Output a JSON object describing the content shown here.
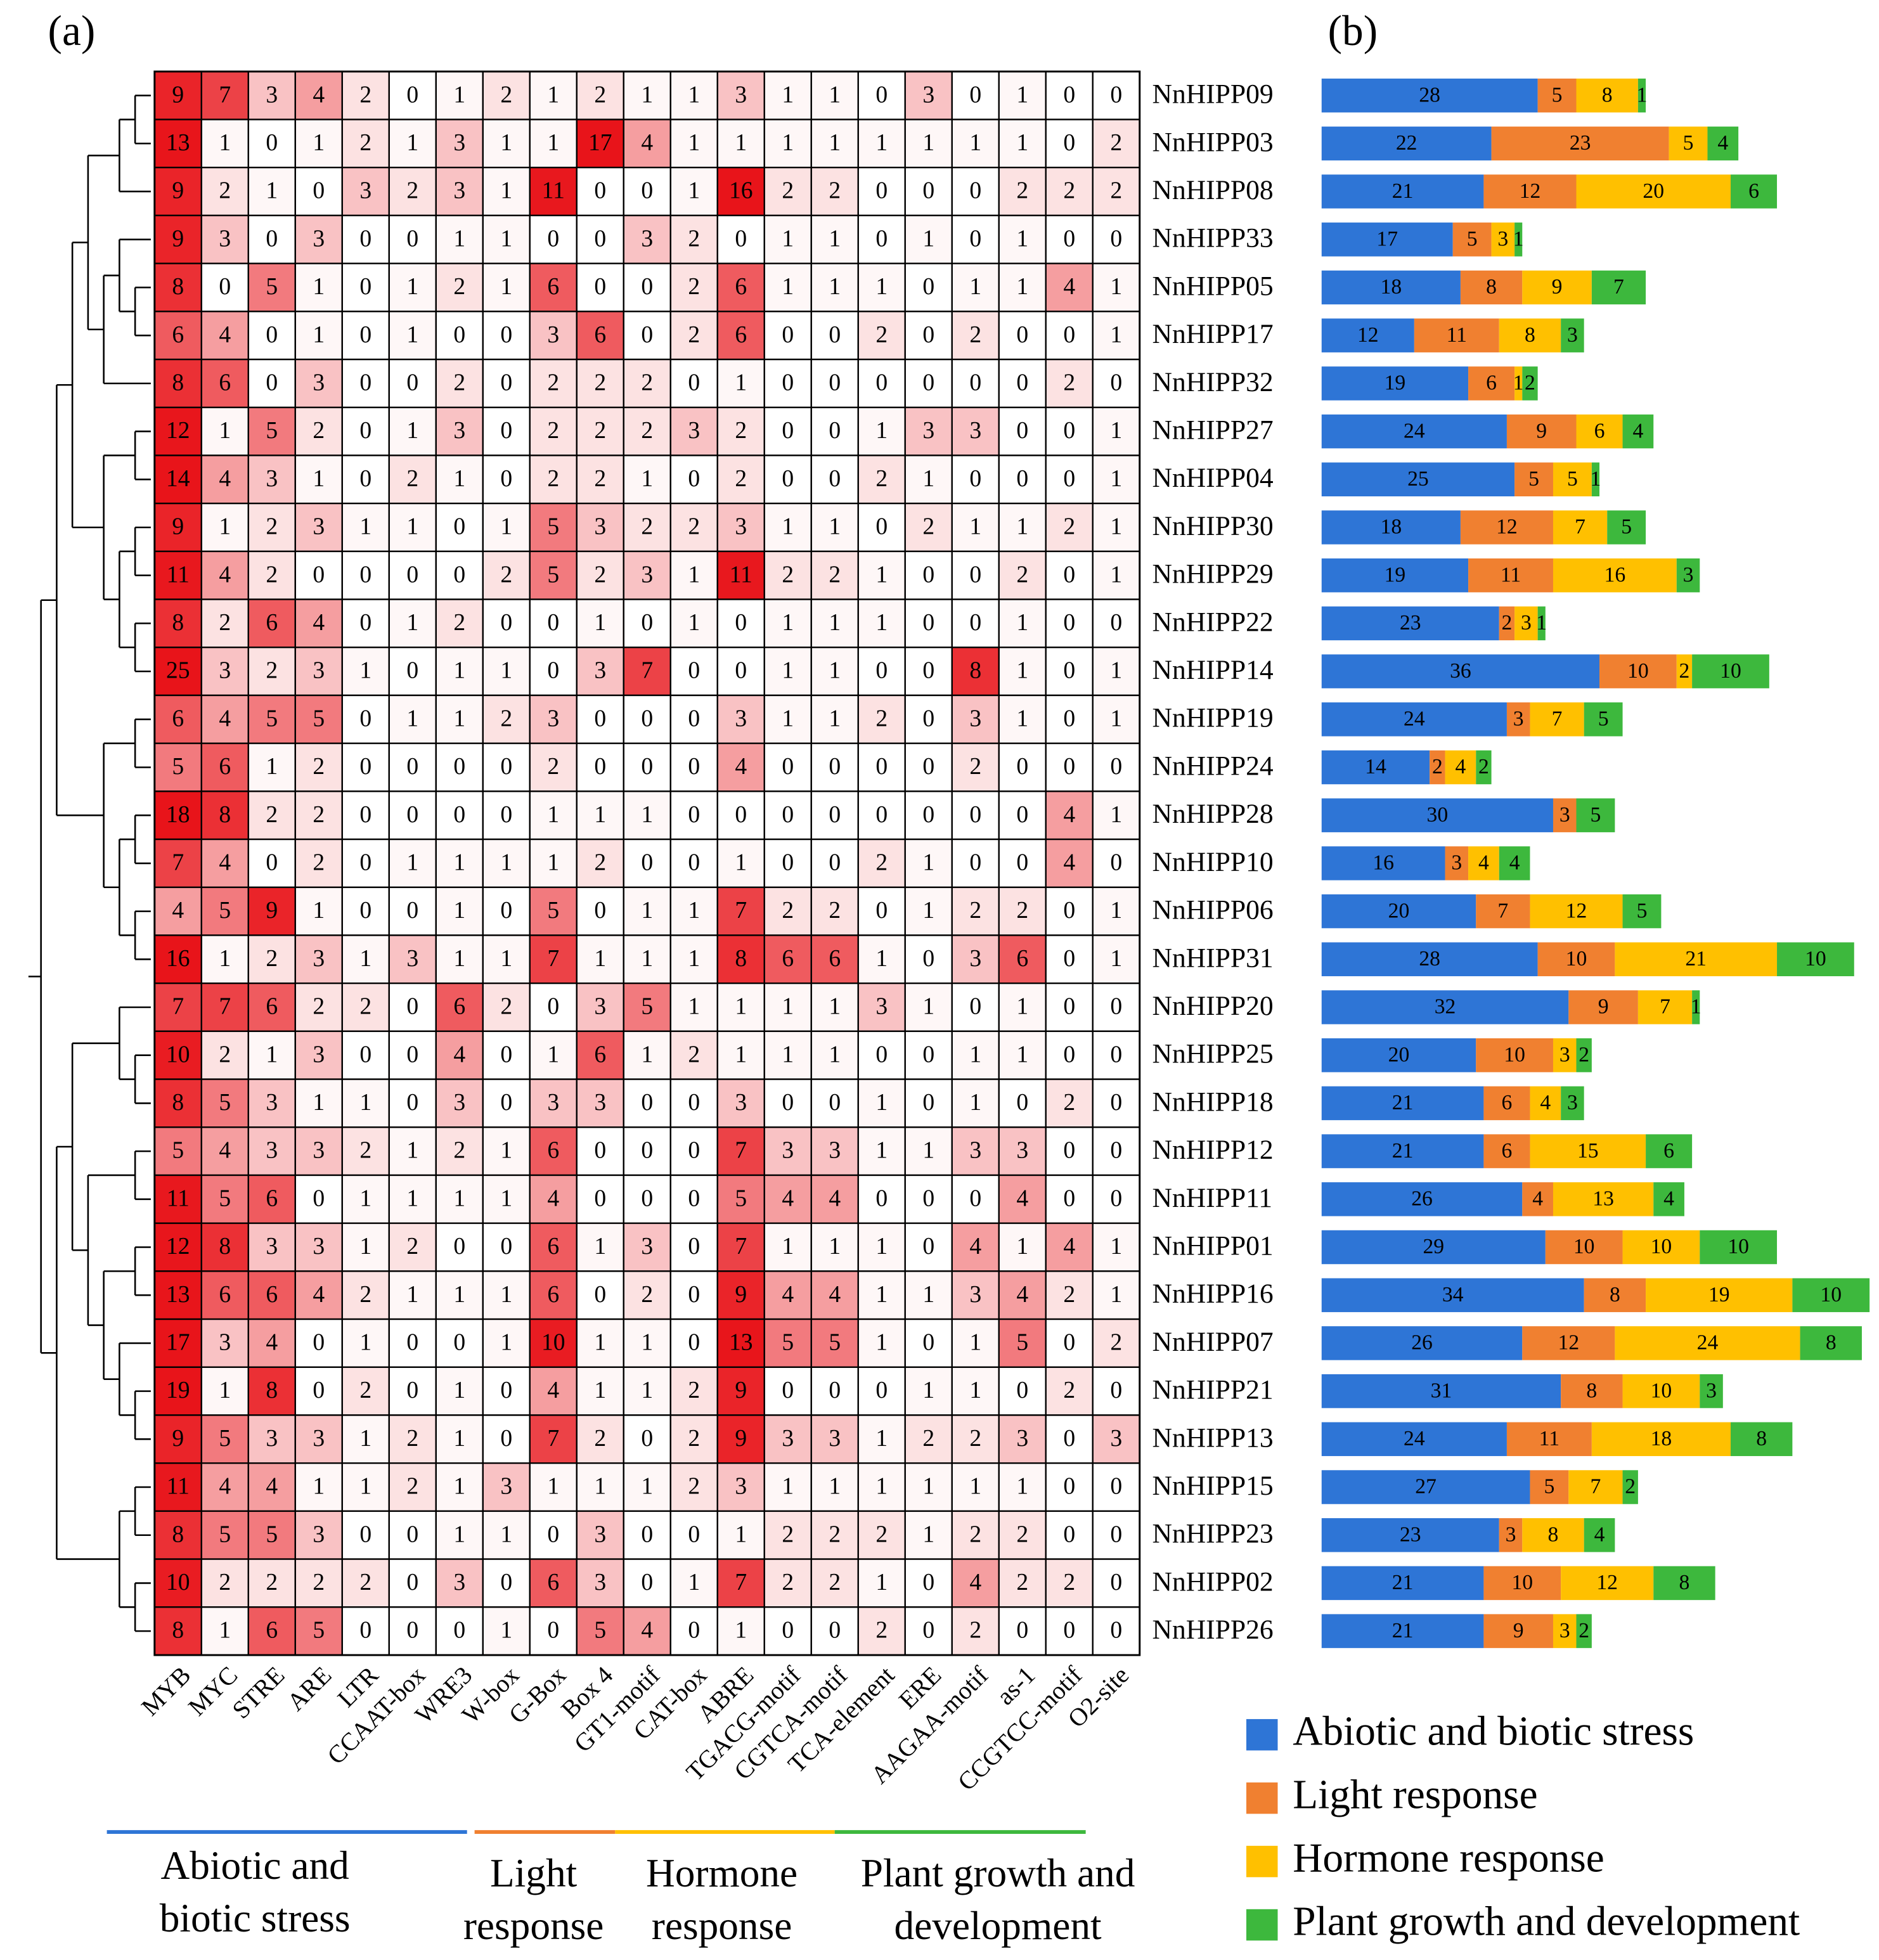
{
  "chart_data": [
    {
      "type": "heatmap",
      "panel_label": "(a)",
      "columns": [
        "MYB",
        "MYC",
        "STRE",
        "ARE",
        "LTR",
        "CCAAT-box",
        "WRE3",
        "W-box",
        "G-Box",
        "Box 4",
        "GT1-motif",
        "CAT-box",
        "ABRE",
        "TGACG-motif",
        "CGTCA-motif",
        "TCA-element",
        "ERE",
        "AAGAA-motif",
        "as-1",
        "CCGTCC-motif",
        "O2-site"
      ],
      "rows": [
        "NnHIPP09",
        "NnHIPP03",
        "NnHIPP08",
        "NnHIPP33",
        "NnHIPP05",
        "NnHIPP17",
        "NnHIPP32",
        "NnHIPP27",
        "NnHIPP04",
        "NnHIPP30",
        "NnHIPP29",
        "NnHIPP22",
        "NnHIPP14",
        "NnHIPP19",
        "NnHIPP24",
        "NnHIPP28",
        "NnHIPP10",
        "NnHIPP06",
        "NnHIPP31",
        "NnHIPP20",
        "NnHIPP25",
        "NnHIPP18",
        "NnHIPP12",
        "NnHIPP11",
        "NnHIPP01",
        "NnHIPP16",
        "NnHIPP07",
        "NnHIPP21",
        "NnHIPP13",
        "NnHIPP15",
        "NnHIPP23",
        "NnHIPP02",
        "NnHIPP26"
      ],
      "values": [
        [
          9,
          7,
          3,
          4,
          2,
          0,
          1,
          2,
          1,
          2,
          1,
          1,
          3,
          1,
          1,
          0,
          3,
          0,
          1,
          0,
          0
        ],
        [
          13,
          1,
          0,
          1,
          2,
          1,
          3,
          1,
          1,
          17,
          4,
          1,
          1,
          1,
          1,
          1,
          1,
          1,
          1,
          0,
          2
        ],
        [
          9,
          2,
          1,
          0,
          3,
          2,
          3,
          1,
          11,
          0,
          0,
          1,
          16,
          2,
          2,
          0,
          0,
          0,
          2,
          2,
          2
        ],
        [
          9,
          3,
          0,
          3,
          0,
          0,
          1,
          1,
          0,
          0,
          3,
          2,
          0,
          1,
          1,
          0,
          1,
          0,
          1,
          0,
          0
        ],
        [
          8,
          0,
          5,
          1,
          0,
          1,
          2,
          1,
          6,
          0,
          0,
          2,
          6,
          1,
          1,
          1,
          0,
          1,
          1,
          4,
          1
        ],
        [
          6,
          4,
          0,
          1,
          0,
          1,
          0,
          0,
          3,
          6,
          0,
          2,
          6,
          0,
          0,
          2,
          0,
          2,
          0,
          0,
          1
        ],
        [
          8,
          6,
          0,
          3,
          0,
          0,
          2,
          0,
          2,
          2,
          2,
          0,
          1,
          0,
          0,
          0,
          0,
          0,
          0,
          2,
          0
        ],
        [
          12,
          1,
          5,
          2,
          0,
          1,
          3,
          0,
          2,
          2,
          2,
          3,
          2,
          0,
          0,
          1,
          3,
          3,
          0,
          0,
          1
        ],
        [
          14,
          4,
          3,
          1,
          0,
          2,
          1,
          0,
          2,
          2,
          1,
          0,
          2,
          0,
          0,
          2,
          1,
          0,
          0,
          0,
          1
        ],
        [
          9,
          1,
          2,
          3,
          1,
          1,
          0,
          1,
          5,
          3,
          2,
          2,
          3,
          1,
          1,
          0,
          2,
          1,
          1,
          2,
          1
        ],
        [
          11,
          4,
          2,
          0,
          0,
          0,
          0,
          2,
          5,
          2,
          3,
          1,
          11,
          2,
          2,
          1,
          0,
          0,
          2,
          0,
          1
        ],
        [
          8,
          2,
          6,
          4,
          0,
          1,
          2,
          0,
          0,
          1,
          0,
          1,
          0,
          1,
          1,
          1,
          0,
          0,
          1,
          0,
          0
        ],
        [
          25,
          3,
          2,
          3,
          1,
          0,
          1,
          1,
          0,
          3,
          7,
          0,
          0,
          1,
          1,
          0,
          0,
          8,
          1,
          0,
          1
        ],
        [
          6,
          4,
          5,
          5,
          0,
          1,
          1,
          2,
          3,
          0,
          0,
          0,
          3,
          1,
          1,
          2,
          0,
          3,
          1,
          0,
          1
        ],
        [
          5,
          6,
          1,
          2,
          0,
          0,
          0,
          0,
          2,
          0,
          0,
          0,
          4,
          0,
          0,
          0,
          0,
          2,
          0,
          0,
          0
        ],
        [
          18,
          8,
          2,
          2,
          0,
          0,
          0,
          0,
          1,
          1,
          1,
          0,
          0,
          0,
          0,
          0,
          0,
          0,
          0,
          4,
          1
        ],
        [
          7,
          4,
          0,
          2,
          0,
          1,
          1,
          1,
          1,
          2,
          0,
          0,
          1,
          0,
          0,
          2,
          1,
          0,
          0,
          4,
          0
        ],
        [
          4,
          5,
          9,
          1,
          0,
          0,
          1,
          0,
          5,
          0,
          1,
          1,
          7,
          2,
          2,
          0,
          1,
          2,
          2,
          0,
          1
        ],
        [
          16,
          1,
          2,
          3,
          1,
          3,
          1,
          1,
          7,
          1,
          1,
          1,
          8,
          6,
          6,
          1,
          0,
          3,
          6,
          0,
          1
        ],
        [
          7,
          7,
          6,
          2,
          2,
          0,
          6,
          2,
          0,
          3,
          5,
          1,
          1,
          1,
          1,
          3,
          1,
          0,
          1,
          0,
          0
        ],
        [
          10,
          2,
          1,
          3,
          0,
          0,
          4,
          0,
          1,
          6,
          1,
          2,
          1,
          1,
          1,
          0,
          0,
          1,
          1,
          0,
          0
        ],
        [
          8,
          5,
          3,
          1,
          1,
          0,
          3,
          0,
          3,
          3,
          0,
          0,
          3,
          0,
          0,
          1,
          0,
          1,
          0,
          2,
          0
        ],
        [
          5,
          4,
          3,
          3,
          2,
          1,
          2,
          1,
          6,
          0,
          0,
          0,
          7,
          3,
          3,
          1,
          1,
          3,
          3,
          0,
          0
        ],
        [
          11,
          5,
          6,
          0,
          1,
          1,
          1,
          1,
          4,
          0,
          0,
          0,
          5,
          4,
          4,
          0,
          0,
          0,
          4,
          0,
          0
        ],
        [
          12,
          8,
          3,
          3,
          1,
          2,
          0,
          0,
          6,
          1,
          3,
          0,
          7,
          1,
          1,
          1,
          0,
          4,
          1,
          4,
          1
        ],
        [
          13,
          6,
          6,
          4,
          2,
          1,
          1,
          1,
          6,
          0,
          2,
          0,
          9,
          4,
          4,
          1,
          1,
          3,
          4,
          2,
          1
        ],
        [
          17,
          3,
          4,
          0,
          1,
          0,
          0,
          1,
          10,
          1,
          1,
          0,
          13,
          5,
          5,
          1,
          0,
          1,
          5,
          0,
          2
        ],
        [
          19,
          1,
          8,
          0,
          2,
          0,
          1,
          0,
          4,
          1,
          1,
          2,
          9,
          0,
          0,
          0,
          1,
          1,
          0,
          2,
          0
        ],
        [
          9,
          5,
          3,
          3,
          1,
          2,
          1,
          0,
          7,
          2,
          0,
          2,
          9,
          3,
          3,
          1,
          2,
          2,
          3,
          0,
          3
        ],
        [
          11,
          4,
          4,
          1,
          1,
          2,
          1,
          3,
          1,
          1,
          1,
          2,
          3,
          1,
          1,
          1,
          1,
          1,
          1,
          0,
          0
        ],
        [
          8,
          5,
          5,
          3,
          0,
          0,
          1,
          1,
          0,
          3,
          0,
          0,
          1,
          2,
          2,
          2,
          1,
          2,
          2,
          0,
          0
        ],
        [
          10,
          2,
          2,
          2,
          2,
          0,
          3,
          0,
          6,
          3,
          0,
          1,
          7,
          2,
          2,
          1,
          0,
          4,
          2,
          2,
          0
        ],
        [
          8,
          1,
          6,
          5,
          0,
          0,
          0,
          1,
          0,
          5,
          4,
          0,
          1,
          0,
          0,
          2,
          0,
          2,
          0,
          0,
          0
        ]
      ],
      "groups": [
        {
          "lines": [
            "Abiotic and",
            "biotic stress"
          ],
          "color": "#2e75d6"
        },
        {
          "lines": [
            "Light",
            "response"
          ],
          "color": "#f08030"
        },
        {
          "lines": [
            "Hormone",
            "response"
          ],
          "color": "#ffc000"
        },
        {
          "lines": [
            "Plant growth and",
            "development"
          ],
          "color": "#3db83d"
        }
      ]
    },
    {
      "type": "bar",
      "orientation": "horizontal",
      "stacked": true,
      "panel_label": "(b)",
      "legend": "bottom-right",
      "series": [
        {
          "name": "Abiotic and biotic stress",
          "color": "#2e75d6",
          "values": [
            28,
            22,
            21,
            17,
            18,
            12,
            19,
            24,
            25,
            18,
            19,
            23,
            36,
            24,
            14,
            30,
            16,
            20,
            28,
            32,
            20,
            21,
            21,
            26,
            29,
            34,
            26,
            31,
            24,
            27,
            23,
            21,
            21
          ]
        },
        {
          "name": "Light response",
          "color": "#f08030",
          "values": [
            5,
            23,
            12,
            5,
            8,
            11,
            6,
            9,
            5,
            12,
            11,
            2,
            10,
            3,
            2,
            3,
            3,
            7,
            10,
            9,
            10,
            6,
            6,
            4,
            10,
            8,
            12,
            8,
            11,
            5,
            3,
            10,
            9
          ]
        },
        {
          "name": "Hormone response",
          "color": "#ffc000",
          "values": [
            8,
            5,
            20,
            3,
            9,
            8,
            1,
            6,
            5,
            7,
            16,
            3,
            2,
            7,
            4,
            0,
            4,
            12,
            21,
            7,
            3,
            4,
            15,
            13,
            10,
            19,
            24,
            10,
            18,
            7,
            8,
            12,
            3
          ]
        },
        {
          "name": "Plant growth and development",
          "color": "#3db83d",
          "values": [
            1,
            4,
            6,
            1,
            7,
            3,
            2,
            4,
            1,
            5,
            3,
            1,
            10,
            5,
            2,
            5,
            4,
            5,
            10,
            1,
            2,
            3,
            6,
            4,
            10,
            10,
            8,
            3,
            8,
            2,
            4,
            8,
            2
          ]
        }
      ]
    }
  ]
}
